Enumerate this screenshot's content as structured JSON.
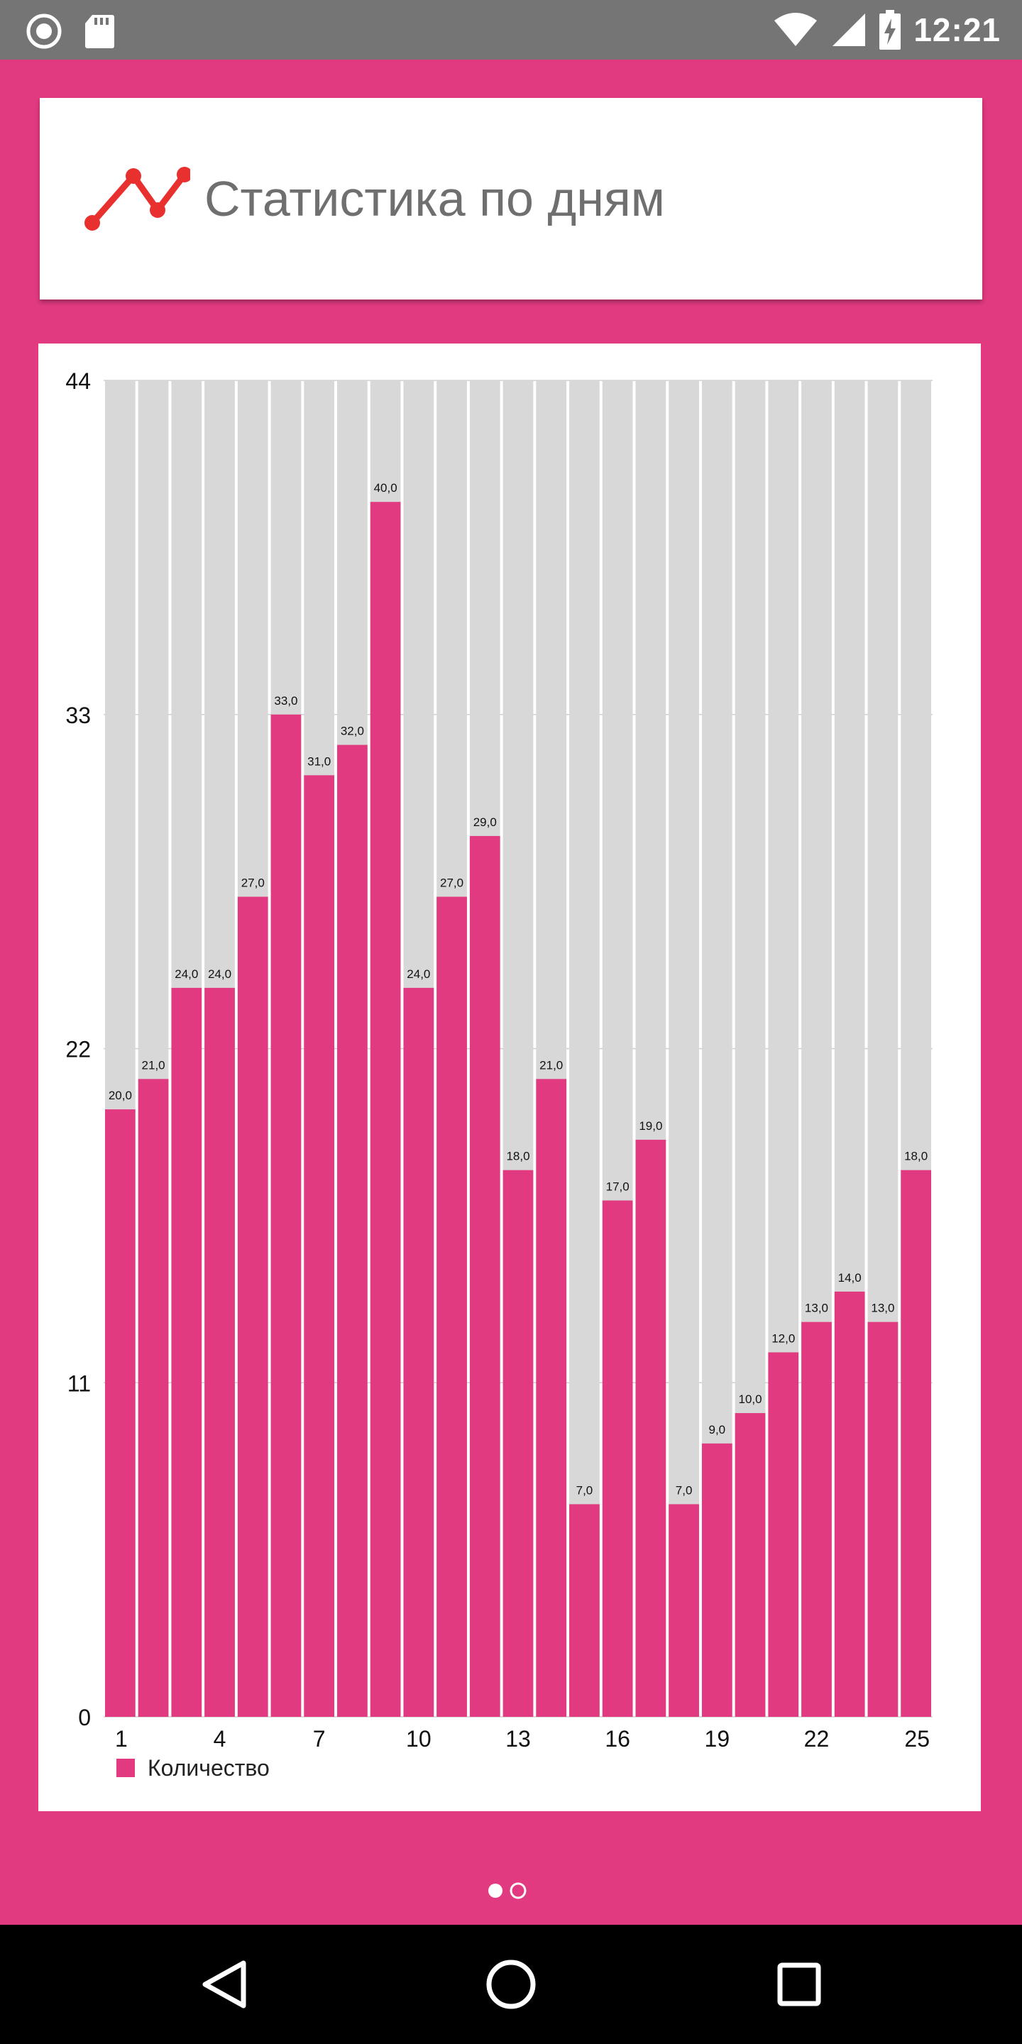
{
  "status_bar": {
    "time": "12:21",
    "icons": [
      "record-icon",
      "sd-card-icon",
      "wifi-icon",
      "signal-icon",
      "battery-charging-icon"
    ]
  },
  "header": {
    "title": "Статистика по дням",
    "icon": "line-chart-icon",
    "icon_color": "#e8312f"
  },
  "chart_data": {
    "type": "bar",
    "categories": [
      "1",
      "2",
      "3",
      "4",
      "5",
      "6",
      "7",
      "8",
      "9",
      "10",
      "11",
      "12",
      "13",
      "14",
      "15",
      "16",
      "17",
      "18",
      "19",
      "20",
      "21",
      "22",
      "23",
      "24",
      "25"
    ],
    "series": [
      {
        "name": "Количество",
        "color": "#e23a80",
        "values": [
          20,
          21,
          24,
          24,
          27,
          33,
          31,
          32,
          40,
          24,
          27,
          29,
          18,
          21,
          7,
          17,
          19,
          7,
          9,
          10,
          12,
          13,
          14,
          13,
          18
        ],
        "labels": [
          "20,0",
          "21,0",
          "24,0",
          "24,0",
          "27,0",
          "33,0",
          "31,0",
          "32,0",
          "40,0",
          "24,0",
          "27,0",
          "29,0",
          "18,0",
          "21,0",
          "7,0",
          "17,0",
          "19,0",
          "7,0",
          "9,0",
          "10,0",
          "12,0",
          "13,0",
          "14,0",
          "13,0",
          "18,0"
        ]
      }
    ],
    "xticks": [
      "1",
      "4",
      "7",
      "10",
      "13",
      "16",
      "19",
      "22",
      "25"
    ],
    "yticks": [
      "0",
      "11",
      "22",
      "33",
      "44"
    ],
    "ylim": [
      0,
      44
    ],
    "background_bar_color": "#d8d8d8",
    "grid": true,
    "legend": "bottom-left"
  },
  "pager": {
    "pages": 2,
    "active": 0
  },
  "nav_bar": {
    "buttons": [
      "back-icon",
      "home-icon",
      "recents-icon"
    ]
  }
}
